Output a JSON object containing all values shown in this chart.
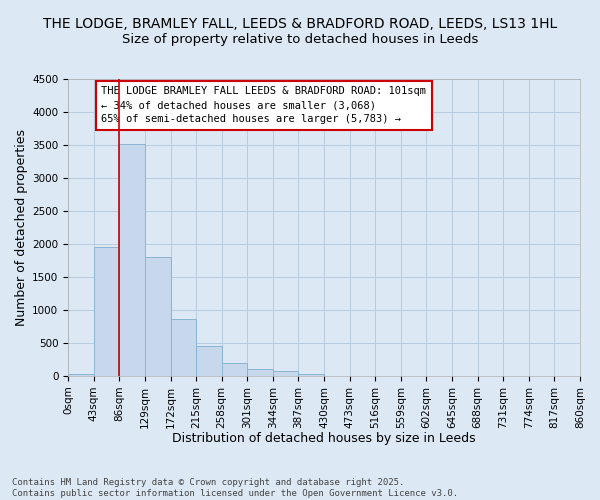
{
  "title_line1": "THE LODGE, BRAMLEY FALL, LEEDS & BRADFORD ROAD, LEEDS, LS13 1HL",
  "title_line2": "Size of property relative to detached houses in Leeds",
  "xlabel": "Distribution of detached houses by size in Leeds",
  "ylabel": "Number of detached properties",
  "bar_values": [
    30,
    1950,
    3520,
    1800,
    870,
    460,
    190,
    100,
    70,
    30,
    0,
    0,
    0,
    0,
    0,
    0,
    0,
    0,
    0,
    0
  ],
  "bin_labels": [
    "0sqm",
    "43sqm",
    "86sqm",
    "129sqm",
    "172sqm",
    "215sqm",
    "258sqm",
    "301sqm",
    "344sqm",
    "387sqm",
    "430sqm",
    "473sqm",
    "516sqm",
    "559sqm",
    "602sqm",
    "645sqm",
    "688sqm",
    "731sqm",
    "774sqm",
    "817sqm",
    "860sqm"
  ],
  "bar_color": "#c8d8ec",
  "bar_edge_color": "#8ab4d4",
  "grid_color": "#b8cce0",
  "bg_color": "#dce8f4",
  "vline_x": 2,
  "vline_color": "#cc0000",
  "annotation_text": "THE LODGE BRAMLEY FALL LEEDS & BRADFORD ROAD: 101sqm\n← 34% of detached houses are smaller (3,068)\n65% of semi-detached houses are larger (5,783) →",
  "annotation_box_facecolor": "#ffffff",
  "annotation_box_edge": "#cc0000",
  "ylim": [
    0,
    4500
  ],
  "yticks": [
    0,
    500,
    1000,
    1500,
    2000,
    2500,
    3000,
    3500,
    4000,
    4500
  ],
  "footnote_line1": "Contains HM Land Registry data © Crown copyright and database right 2025.",
  "footnote_line2": "Contains public sector information licensed under the Open Government Licence v3.0.",
  "title_fontsize": 10,
  "subtitle_fontsize": 9.5,
  "axis_label_fontsize": 9,
  "tick_fontsize": 7.5,
  "annotation_fontsize": 7.5,
  "footnote_fontsize": 6.5
}
